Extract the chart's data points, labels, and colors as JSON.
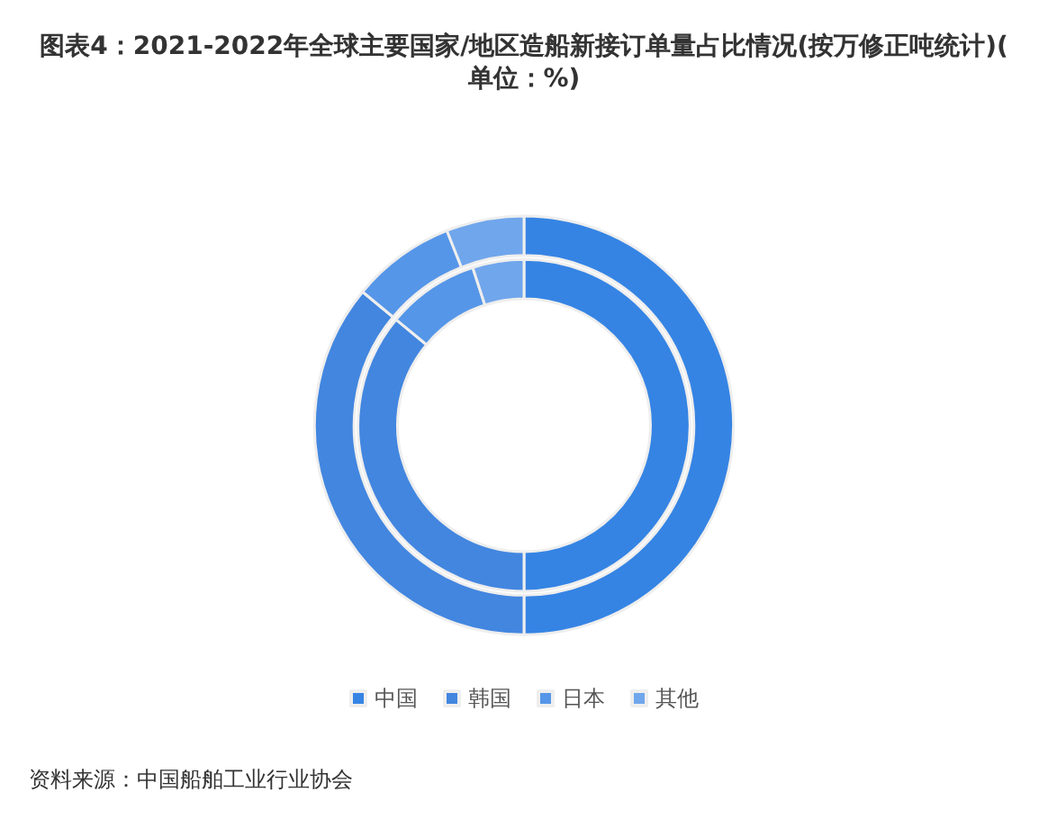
{
  "chart_data": {
    "type": "donut",
    "title": "图表4：2021-2022年全球主要国家/地区造船新接订单量占比情况(按万修正吨统计)(单位：%)",
    "categories": [
      "中国",
      "韩国",
      "日本",
      "其他"
    ],
    "colors": [
      "#3584e4",
      "#4286e0",
      "#5596e8",
      "#70a6ec"
    ],
    "series": [
      {
        "values": [
          50,
          36,
          9,
          5
        ]
      },
      {
        "values": [
          50,
          36,
          8,
          6
        ]
      }
    ],
    "legend": "bottom",
    "annotations": [
      "资料来源：中国船舶工业行业协会"
    ]
  }
}
